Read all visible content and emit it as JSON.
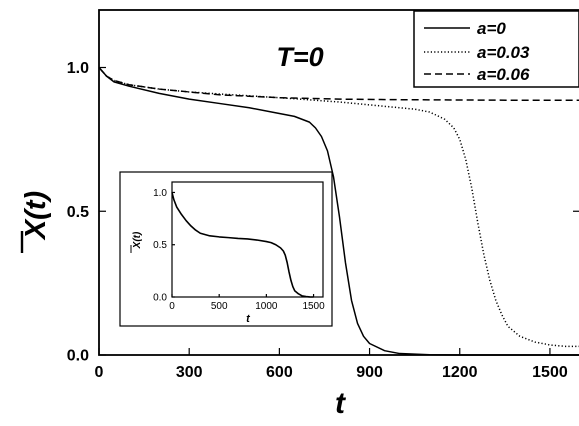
{
  "chart_data": [
    {
      "id": "main",
      "type": "line",
      "annotation": "T=0",
      "xlabel": "t",
      "ylabel": "X(t)",
      "xlim": [
        0,
        1600
      ],
      "ylim": [
        0,
        1.2
      ],
      "xticks": [
        0,
        300,
        600,
        900,
        1200,
        1500
      ],
      "xtick_labels": [
        "0",
        "300",
        "600",
        "900",
        "1200",
        "1500"
      ],
      "yticks": [
        0.0,
        0.5,
        1.0
      ],
      "ytick_labels": [
        "0.0",
        "0.5",
        "1.0"
      ],
      "legend_position": "top-right",
      "grid": false,
      "series": [
        {
          "name": "a=0",
          "style": "solid",
          "x": [
            0,
            25,
            50,
            100,
            200,
            300,
            400,
            500,
            600,
            650,
            700,
            720,
            740,
            760,
            780,
            800,
            820,
            840,
            860,
            880,
            900,
            950,
            1000,
            1100,
            1200,
            1300,
            1400,
            1500,
            1600
          ],
          "y": [
            1.0,
            0.97,
            0.95,
            0.935,
            0.91,
            0.89,
            0.875,
            0.86,
            0.84,
            0.83,
            0.81,
            0.79,
            0.76,
            0.71,
            0.62,
            0.48,
            0.32,
            0.19,
            0.11,
            0.065,
            0.04,
            0.015,
            0.005,
            0.001,
            0.0,
            0.0,
            0.0,
            0.0,
            0.0
          ]
        },
        {
          "name": "a=0.03",
          "style": "dotted",
          "x": [
            0,
            25,
            50,
            100,
            200,
            300,
            400,
            600,
            800,
            900,
            1000,
            1050,
            1100,
            1150,
            1180,
            1200,
            1220,
            1240,
            1260,
            1280,
            1300,
            1320,
            1340,
            1360,
            1400,
            1450,
            1500,
            1550,
            1600
          ],
          "y": [
            1.0,
            0.97,
            0.955,
            0.94,
            0.925,
            0.915,
            0.908,
            0.895,
            0.88,
            0.87,
            0.86,
            0.855,
            0.845,
            0.82,
            0.79,
            0.75,
            0.68,
            0.58,
            0.46,
            0.35,
            0.26,
            0.19,
            0.14,
            0.1,
            0.065,
            0.045,
            0.035,
            0.03,
            0.03
          ]
        },
        {
          "name": "a=0.06",
          "style": "dashed",
          "x": [
            0,
            25,
            50,
            100,
            200,
            300,
            400,
            500,
            600,
            800,
            1000,
            1200,
            1400,
            1600
          ],
          "y": [
            1.0,
            0.97,
            0.955,
            0.94,
            0.925,
            0.915,
            0.905,
            0.9,
            0.895,
            0.89,
            0.888,
            0.887,
            0.886,
            0.886
          ]
        }
      ]
    },
    {
      "id": "inset",
      "type": "line",
      "xlabel": "t",
      "ylabel": "X(t)",
      "xlim": [
        0,
        1600
      ],
      "ylim": [
        0,
        1.1
      ],
      "xticks": [
        0,
        500,
        1000,
        1500
      ],
      "xtick_labels": [
        "0",
        "500",
        "1000",
        "1500"
      ],
      "yticks": [
        0.0,
        0.5,
        1.0
      ],
      "ytick_labels": [
        "0.0",
        "0.5",
        "1.0"
      ],
      "grid": false,
      "series": [
        {
          "style": "solid",
          "x": [
            0,
            20,
            50,
            100,
            150,
            200,
            250,
            300,
            400,
            500,
            600,
            700,
            800,
            900,
            1000,
            1050,
            1100,
            1150,
            1180,
            1200,
            1220,
            1240,
            1260,
            1280,
            1300,
            1340,
            1380,
            1420,
            1460,
            1500
          ],
          "y": [
            1.0,
            0.93,
            0.86,
            0.79,
            0.73,
            0.68,
            0.64,
            0.61,
            0.585,
            0.575,
            0.568,
            0.56,
            0.555,
            0.545,
            0.53,
            0.52,
            0.5,
            0.47,
            0.44,
            0.4,
            0.33,
            0.24,
            0.16,
            0.1,
            0.06,
            0.03,
            0.01,
            0.004,
            0.001,
            0.0
          ]
        }
      ]
    }
  ],
  "colors": {
    "line": "#000000",
    "axis": "#000000",
    "background": "#ffffff"
  }
}
